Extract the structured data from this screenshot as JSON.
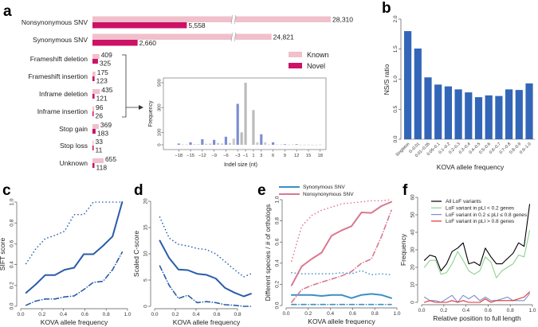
{
  "panels": {
    "a": "a",
    "b": "b",
    "c": "c",
    "d": "d",
    "e": "e",
    "f": "f"
  },
  "chart_data": [
    {
      "id": "a",
      "type": "bar",
      "orientation": "horizontal",
      "axis_break": true,
      "categories": [
        "Nonsynonymous SNV",
        "Synonymous SNV",
        "Frameshift deletion",
        "Frameshift insertion",
        "Inframe deletion",
        "Inframe insertion",
        "Stop gain",
        "Stop loss",
        "Unknown"
      ],
      "series": [
        {
          "name": "Known",
          "color": "#f0c0cb",
          "values": [
            28310,
            24821,
            409,
            175,
            435,
            96,
            369,
            33,
            655
          ],
          "labels": [
            "28,310",
            "24,821",
            "409",
            "175",
            "435",
            "96",
            "369",
            "33",
            "655"
          ]
        },
        {
          "name": "Novel",
          "color": "#cc1166",
          "values": [
            5558,
            2660,
            325,
            123,
            121,
            26,
            183,
            11,
            118
          ],
          "labels": [
            "5,558",
            "2,660",
            "325",
            "123",
            "121",
            "26",
            "183",
            "11",
            "118"
          ]
        }
      ],
      "legend": "right"
    },
    {
      "id": "a-inset",
      "type": "bar",
      "xlabel": "Indel size (nt)",
      "ylabel": "Frequency",
      "xticks": [
        -18,
        -15,
        -12,
        -9,
        -6,
        -3,
        -1,
        1,
        3,
        6,
        9,
        12,
        15,
        18
      ],
      "xtick_labels": [
        "−18",
        "−15",
        "−12",
        "−9",
        "−6",
        "−3",
        "−1",
        "1",
        "3",
        "6",
        "9",
        "12",
        "15",
        "18"
      ],
      "yticks": [
        0,
        100,
        300,
        500
      ],
      "ylim": [
        0,
        500
      ],
      "xlim": [
        -18,
        18
      ],
      "x": [
        -18,
        -17,
        -16,
        -15,
        -14,
        -13,
        -12,
        -11,
        -10,
        -9,
        -8,
        -7,
        -6,
        -5,
        -4,
        -3,
        -2,
        -1,
        1,
        2,
        3,
        4,
        5,
        6,
        7,
        8,
        9,
        10,
        11,
        12,
        13,
        14,
        15,
        16,
        17,
        18
      ],
      "values": [
        10,
        3,
        3,
        20,
        5,
        5,
        45,
        8,
        10,
        40,
        15,
        10,
        65,
        15,
        50,
        330,
        100,
        500,
        280,
        20,
        85,
        20,
        3,
        20,
        3,
        3,
        5,
        2,
        2,
        5,
        1,
        1,
        2,
        1,
        1,
        2
      ],
      "colors": [
        "#7b8fd1",
        "#cccccc",
        "#cccccc",
        "#7b8fd1",
        "#cccccc",
        "#cccccc",
        "#7b8fd1",
        "#cccccc",
        "#cccccc",
        "#7b8fd1",
        "#cccccc",
        "#cccccc",
        "#7b8fd1",
        "#cccccc",
        "#cccccc",
        "#7b8fd1",
        "#bbbbbb",
        "#bbbbbb",
        "#bbbbbb",
        "#cccccc",
        "#7b8fd1",
        "#cccccc",
        "#cccccc",
        "#7b8fd1",
        "#cccccc",
        "#cccccc",
        "#7b8fd1",
        "#cccccc",
        "#cccccc",
        "#7b8fd1",
        "#cccccc",
        "#cccccc",
        "#cccccc",
        "#cccccc",
        "#cccccc",
        "#cccccc"
      ]
    },
    {
      "id": "b",
      "type": "bar",
      "color": "#3366b8",
      "xlabel": "KOVA allele frequency",
      "ylabel": "NS/S ratio",
      "ylim": [
        0,
        2
      ],
      "yticks": [
        0,
        0.5,
        1,
        1.5,
        2
      ],
      "ytick_labels": [
        "0.0",
        "0.5",
        "1.0",
        "1.5",
        "2.0"
      ],
      "categories": [
        "Singleton",
        "0–0.01",
        "0.01–0.05",
        "0.05–0.1",
        "0.1–0.2",
        "0.2–0.3",
        "0.3–0.4",
        "0.4–0.5",
        "0.5–0.6",
        "0.6–0.7",
        "0.7–0.8",
        "0.8–0.9",
        "0.9–1.0"
      ],
      "values": [
        1.8,
        1.51,
        1.03,
        0.91,
        0.88,
        0.83,
        0.78,
        0.7,
        0.73,
        0.72,
        0.83,
        0.82,
        0.93
      ]
    },
    {
      "id": "c",
      "type": "line",
      "xlabel": "KOVA allele frequency",
      "ylabel": "SIFT score",
      "xlim": [
        0,
        1
      ],
      "ylim": [
        0,
        1
      ],
      "xticks": [
        0,
        0.2,
        0.4,
        0.6,
        0.8,
        1.0
      ],
      "xtick_labels": [
        "0.0",
        "0.2",
        "0.4",
        "0.6",
        "0.8",
        "1.0"
      ],
      "yticks": [
        0,
        0.2,
        0.4,
        0.6,
        0.8,
        1.0
      ],
      "ytick_labels": [
        "0.0",
        "0.2",
        "0.4",
        "0.6",
        "0.8",
        "1.0"
      ],
      "x": [
        0.05,
        0.14,
        0.23,
        0.32,
        0.41,
        0.5,
        0.59,
        0.68,
        0.77,
        0.86,
        0.95
      ],
      "series": [
        {
          "color": "#2a5caa",
          "style": "solid",
          "values": [
            0.13,
            0.21,
            0.3,
            0.3,
            0.35,
            0.37,
            0.5,
            0.5,
            0.58,
            0.67,
            1.0
          ]
        },
        {
          "color": "#2a5caa",
          "style": "dotted",
          "values": [
            0.41,
            0.55,
            0.65,
            0.68,
            0.72,
            0.88,
            0.88,
            1.0,
            1.0,
            1.0,
            1.0
          ]
        },
        {
          "color": "#2a5caa",
          "style": "dashdot",
          "values": [
            0.01,
            0.05,
            0.07,
            0.07,
            0.09,
            0.1,
            0.16,
            0.23,
            0.24,
            0.35,
            0.52
          ]
        }
      ]
    },
    {
      "id": "d",
      "type": "line",
      "xlabel": "KOVA allele frequency",
      "ylabel": "Scaled C-score",
      "xlim": [
        0,
        1
      ],
      "ylim": [
        0,
        20
      ],
      "xticks": [
        0,
        0.2,
        0.4,
        0.6,
        0.8
      ],
      "xtick_labels": [
        "0.0",
        "0.2",
        "0.4",
        "0.6",
        "0.8"
      ],
      "yticks": [
        0,
        5,
        10,
        15,
        20
      ],
      "ytick_labels": [
        "0",
        "5",
        "10",
        "15",
        "20"
      ],
      "x": [
        0.05,
        0.14,
        0.23,
        0.32,
        0.41,
        0.5,
        0.59,
        0.68,
        0.77,
        0.86,
        0.93
      ],
      "series": [
        {
          "color": "#2a5caa",
          "style": "solid",
          "values": [
            12.5,
            9.2,
            7.0,
            6.9,
            6.2,
            6.0,
            5.3,
            3.5,
            2.6,
            1.9,
            2.4
          ]
        },
        {
          "color": "#2a5caa",
          "style": "dotted",
          "values": [
            17,
            13,
            11.8,
            11.5,
            11,
            10.8,
            10,
            8.5,
            7,
            5.6,
            6.2
          ]
        },
        {
          "color": "#2a5caa",
          "style": "dashdot",
          "values": [
            7.7,
            4,
            1.5,
            2.1,
            0.7,
            0.9,
            0.7,
            0.3,
            0.2,
            0,
            0
          ]
        }
      ]
    },
    {
      "id": "e",
      "type": "line",
      "xlabel": "KOVA allele frequency",
      "ylabel": "Different species / # of orthologs",
      "xlim": [
        0,
        1
      ],
      "ylim": [
        0,
        1
      ],
      "xticks": [
        0,
        0.2,
        0.4,
        0.6,
        0.8,
        1.0
      ],
      "xtick_labels": [
        "0.0",
        "0.2",
        "0.4",
        "0.6",
        "0.8",
        "1.0"
      ],
      "yticks": [
        0,
        0.2,
        0.4,
        0.6,
        0.8,
        1.0
      ],
      "ytick_labels": [
        "0.0",
        "0.2",
        "0.4",
        "0.6",
        "0.8",
        "1.0"
      ],
      "x": [
        0.05,
        0.14,
        0.23,
        0.32,
        0.41,
        0.5,
        0.59,
        0.68,
        0.77,
        0.86,
        0.95
      ],
      "legend": "top-left",
      "legend_entries": [
        {
          "name": "Synonymous SNV",
          "color": "#3a8fc6"
        },
        {
          "name": "Nonsynonymous SNV",
          "color": "#d9788f"
        }
      ],
      "series": [
        {
          "name": "Synonymous SNV",
          "color": "#3a8fc6",
          "style": "solid",
          "values": [
            0.1,
            0.1,
            0.1,
            0.09,
            0.1,
            0.1,
            0.07,
            0.1,
            0.11,
            0.1,
            0.07
          ]
        },
        {
          "color": "#3a8fc6",
          "style": "dotted",
          "values": [
            0.31,
            0.3,
            0.3,
            0.3,
            0.3,
            0.31,
            0.3,
            0.33,
            0.29,
            0.3,
            0.29
          ]
        },
        {
          "color": "#3a8fc6",
          "style": "dashdot",
          "values": [
            0.01,
            0.01,
            0.01,
            0.01,
            0.01,
            0.01,
            0.01,
            0.01,
            0.01,
            0.01,
            0.01
          ]
        },
        {
          "name": "Nonsynonymous SNV",
          "color": "#d9788f",
          "style": "solid",
          "values": [
            0.19,
            0.37,
            0.44,
            0.5,
            0.66,
            0.71,
            0.75,
            0.88,
            0.875,
            0.94,
            0.98
          ]
        },
        {
          "color": "#d9788f",
          "style": "dotted",
          "values": [
            0.42,
            0.75,
            0.85,
            0.9,
            0.93,
            0.96,
            0.97,
            0.98,
            0.99,
            0.99,
            1.0
          ]
        },
        {
          "color": "#d9788f",
          "style": "dashdot",
          "values": [
            0.03,
            0.15,
            0.19,
            0.22,
            0.25,
            0.28,
            0.32,
            0.4,
            0.44,
            0.65,
            0.9
          ]
        }
      ]
    },
    {
      "id": "f",
      "type": "line",
      "xlabel": "Relative position to full length",
      "ylabel": "Frequency",
      "xlim": [
        0,
        1
      ],
      "ylim": [
        0,
        60
      ],
      "xticks": [
        0,
        0.2,
        0.4,
        0.6,
        0.8,
        1.0
      ],
      "xtick_labels": [
        "0.0",
        "0.2",
        "0.4",
        "0.6",
        "0.8",
        "1.0"
      ],
      "yticks": [
        0,
        10,
        20,
        30,
        40,
        50,
        60
      ],
      "ytick_labels": [
        "0",
        "10",
        "20",
        "30",
        "40",
        "50",
        "60"
      ],
      "x": [
        0.025,
        0.075,
        0.125,
        0.175,
        0.225,
        0.275,
        0.325,
        0.375,
        0.425,
        0.475,
        0.525,
        0.575,
        0.625,
        0.675,
        0.725,
        0.775,
        0.825,
        0.875,
        0.925,
        0.975
      ],
      "legend": "top-left",
      "legend_entries": [
        {
          "name": "All LoF variants",
          "color": "#000000"
        },
        {
          "name": "LoF variant in pLI < 0.2 genes",
          "color": "#90d090"
        },
        {
          "name": "LoF variant in 0.2 ≤ pLI ≤ 0.8 genes",
          "color": "#7b8fd1"
        },
        {
          "name": "LoF variant in pLI > 0.8 genes",
          "color": "#e03030"
        }
      ],
      "series": [
        {
          "name": "All LoF variants",
          "color": "#000000",
          "style": "solid",
          "values": [
            24,
            27,
            26,
            18,
            22,
            29,
            31,
            34,
            22,
            23,
            21,
            31,
            26,
            22,
            22,
            25,
            28,
            34,
            32,
            56
          ]
        },
        {
          "name": "LoF variant in pLI < 0.2 genes",
          "color": "#90d090",
          "style": "solid",
          "values": [
            20,
            24,
            24,
            16,
            17,
            22,
            29,
            24,
            18,
            16,
            18,
            26,
            23,
            14,
            18,
            20,
            22,
            27,
            26,
            41
          ]
        },
        {
          "name": "LoF variant in 0.2 ≤ pLI ≤ 0.8 genes",
          "color": "#7b8fd1",
          "style": "solid",
          "values": [
            3,
            1,
            1,
            0,
            2,
            4,
            0,
            4,
            2,
            4,
            1,
            3,
            1,
            1,
            2,
            3,
            1,
            1,
            1,
            5
          ]
        },
        {
          "name": "LoF variant in pLI > 0.8 genes",
          "color": "#e03030",
          "style": "solid",
          "values": [
            0,
            1,
            0,
            0,
            0,
            1,
            0,
            1,
            0,
            0,
            0,
            2,
            0,
            1,
            1,
            1,
            1,
            2,
            3,
            6
          ]
        }
      ]
    }
  ]
}
